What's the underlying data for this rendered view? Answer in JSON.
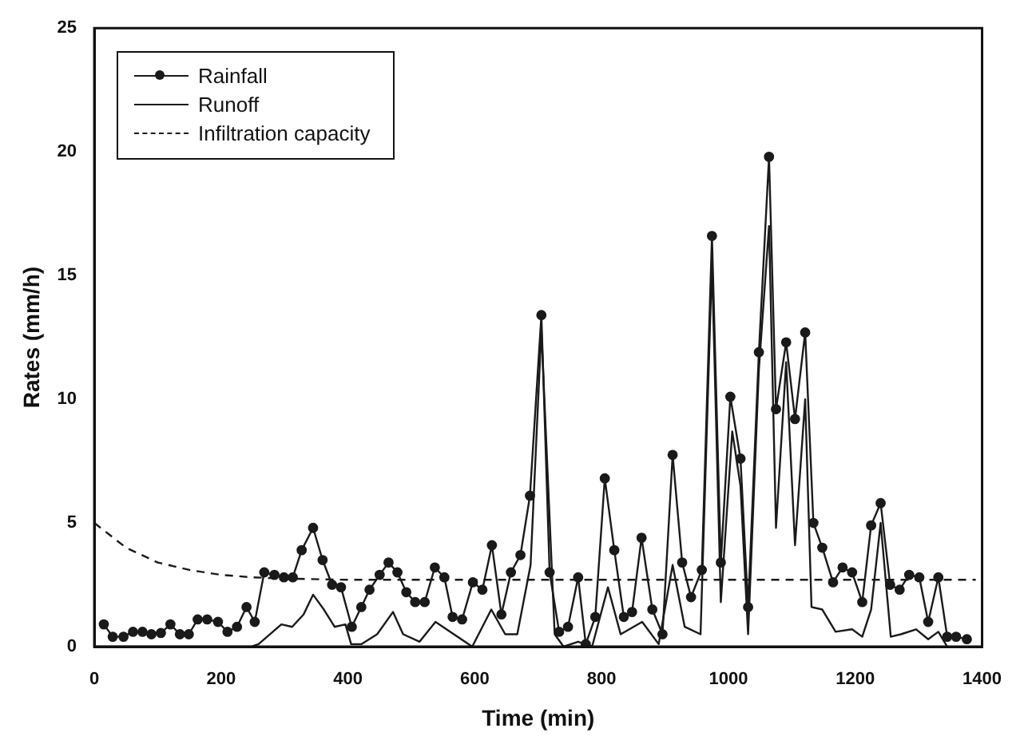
{
  "chart_data": {
    "type": "line",
    "xlabel": "Time (min)",
    "ylabel": "Rates (mm/h)",
    "xlim": [
      0,
      1400
    ],
    "xticks": [
      0,
      200,
      400,
      600,
      800,
      1000,
      1200,
      1400
    ],
    "ylim": [
      0,
      25
    ],
    "yticks": [
      0,
      5,
      10,
      15,
      20,
      25
    ],
    "grid": false,
    "legend": "top left",
    "series": [
      {
        "name": "Rainfall",
        "color": "#1a1a1a",
        "marker": "circle",
        "line_style": "solid",
        "x": [
          15,
          29,
          46,
          61,
          76,
          90,
          105,
          120,
          135,
          149,
          163,
          178,
          195,
          210,
          225,
          240,
          253,
          268,
          284,
          299,
          313,
          327,
          345,
          360,
          375,
          389,
          406,
          421,
          434,
          450,
          464,
          478,
          492,
          506,
          521,
          537,
          552,
          565,
          580,
          597,
          612,
          627,
          642,
          657,
          672,
          687,
          705,
          718,
          733,
          747,
          763,
          775,
          790,
          805,
          820,
          835,
          848,
          863,
          880,
          896,
          912,
          927,
          941,
          958,
          974,
          988,
          1003,
          1019,
          1031,
          1048,
          1064,
          1075,
          1091,
          1105,
          1121,
          1134,
          1148,
          1165,
          1180,
          1195,
          1211,
          1225,
          1240,
          1255,
          1270,
          1285,
          1301,
          1315,
          1331,
          1345,
          1359,
          1376
        ],
        "values": [
          0.9,
          0.4,
          0.4,
          0.6,
          0.6,
          0.5,
          0.55,
          0.9,
          0.5,
          0.5,
          1.1,
          1.1,
          1.0,
          0.6,
          0.8,
          1.6,
          1.0,
          3.0,
          2.9,
          2.8,
          2.8,
          3.9,
          4.8,
          3.5,
          2.5,
          2.4,
          0.8,
          1.6,
          2.3,
          2.9,
          3.4,
          3.0,
          2.2,
          1.8,
          1.8,
          3.2,
          2.8,
          1.2,
          1.1,
          2.6,
          2.3,
          4.1,
          1.3,
          3.0,
          3.7,
          6.1,
          13.4,
          3.0,
          0.6,
          0.8,
          2.8,
          0.1,
          1.2,
          6.8,
          3.9,
          1.2,
          1.4,
          4.4,
          1.5,
          0.5,
          7.75,
          3.4,
          2.0,
          3.1,
          16.6,
          3.4,
          10.1,
          7.6,
          1.6,
          11.9,
          19.8,
          9.6,
          12.3,
          9.2,
          12.7,
          5.0,
          4.0,
          2.6,
          3.2,
          3.0,
          1.8,
          4.9,
          5.8,
          2.5,
          2.3,
          2.9,
          2.8,
          1.0,
          2.8,
          0.4,
          0.4,
          0.3
        ]
      },
      {
        "name": "Runoff",
        "color": "#1a1a1a",
        "marker": "none",
        "line_style": "solid",
        "x": [
          0,
          248,
          259,
          295,
          312,
          330,
          345,
          362,
          379,
          396,
          405,
          421,
          446,
          471,
          487,
          513,
          538,
          567,
          596,
          626,
          648,
          667,
          688,
          705,
          726,
          740,
          763,
          785,
          810,
          830,
          864,
          890,
          912,
          931,
          956,
          974,
          988,
          1006,
          1019,
          1031,
          1048,
          1064,
          1075,
          1091,
          1105,
          1121,
          1131,
          1148,
          1169,
          1195,
          1211,
          1225,
          1240,
          1256,
          1272,
          1296,
          1315,
          1331,
          1345
        ],
        "values": [
          0,
          0,
          0.1,
          0.9,
          0.8,
          1.3,
          2.1,
          1.5,
          0.8,
          0.9,
          0.1,
          0.1,
          0.5,
          1.4,
          0.5,
          0.2,
          1.0,
          0.5,
          0,
          1.5,
          0.5,
          0.5,
          3.3,
          12.8,
          0.5,
          0,
          0.2,
          0,
          2.4,
          0.5,
          1.0,
          0.1,
          3.3,
          0.8,
          0.5,
          15.5,
          1.8,
          8.7,
          6.5,
          0.5,
          11.2,
          17,
          4.8,
          11.5,
          4.1,
          10.0,
          1.6,
          1.5,
          0.6,
          0.7,
          0.4,
          1.5,
          5.0,
          0.4,
          0.5,
          0.7,
          0.3,
          0.6,
          0
        ]
      },
      {
        "name": "Infiltration capacity",
        "color": "#1a1a1a",
        "marker": "none",
        "line_style": "dashed",
        "x": [
          0,
          25,
          50,
          100,
          150,
          200,
          250,
          300,
          400,
          600,
          1000,
          1390
        ],
        "values": [
          5.0,
          4.5,
          4.0,
          3.4,
          3.1,
          2.9,
          2.8,
          2.75,
          2.7,
          2.7,
          2.7,
          2.7
        ]
      }
    ]
  }
}
